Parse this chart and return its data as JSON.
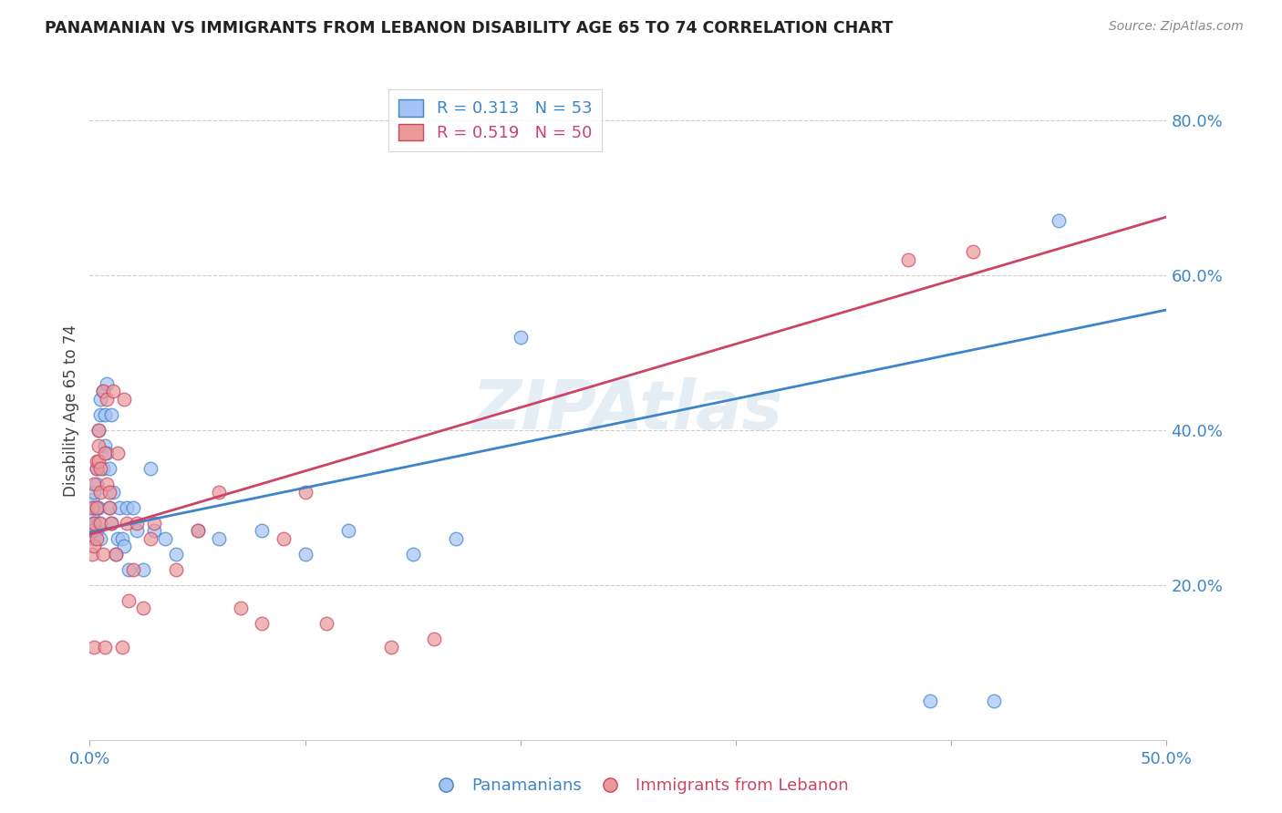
{
  "title": "PANAMANIAN VS IMMIGRANTS FROM LEBANON DISABILITY AGE 65 TO 74 CORRELATION CHART",
  "source": "Source: ZipAtlas.com",
  "ylabel": "Disability Age 65 to 74",
  "xlabel": "",
  "xlim": [
    0.0,
    0.5
  ],
  "ylim": [
    0.0,
    0.85
  ],
  "xticks": [
    0.0,
    0.1,
    0.2,
    0.3,
    0.4,
    0.5
  ],
  "xticklabels": [
    "0.0%",
    "",
    "",
    "",
    "",
    "50.0%"
  ],
  "yticks": [
    0.2,
    0.4,
    0.6,
    0.8
  ],
  "yticklabels": [
    "20.0%",
    "40.0%",
    "60.0%",
    "80.0%"
  ],
  "watermark": "ZIPAtlas",
  "blue_color": "#a4c2f4",
  "pink_color": "#ea9999",
  "blue_line_color": "#3d85c8",
  "pink_line_color": "#cc4466",
  "R_blue": 0.313,
  "N_blue": 53,
  "R_pink": 0.519,
  "N_pink": 50,
  "legend_label_blue": "Panamanians",
  "legend_label_pink": "Immigrants from Lebanon",
  "blue_x": [
    0.001,
    0.001,
    0.001,
    0.002,
    0.002,
    0.002,
    0.002,
    0.003,
    0.003,
    0.003,
    0.003,
    0.004,
    0.004,
    0.004,
    0.005,
    0.005,
    0.005,
    0.006,
    0.006,
    0.007,
    0.007,
    0.008,
    0.008,
    0.009,
    0.009,
    0.01,
    0.01,
    0.011,
    0.012,
    0.013,
    0.014,
    0.015,
    0.016,
    0.017,
    0.018,
    0.02,
    0.022,
    0.025,
    0.028,
    0.03,
    0.035,
    0.04,
    0.05,
    0.06,
    0.08,
    0.1,
    0.12,
    0.15,
    0.17,
    0.2,
    0.39,
    0.42,
    0.45
  ],
  "blue_y": [
    0.27,
    0.29,
    0.31,
    0.26,
    0.28,
    0.3,
    0.32,
    0.27,
    0.3,
    0.33,
    0.35,
    0.28,
    0.3,
    0.4,
    0.26,
    0.42,
    0.44,
    0.35,
    0.45,
    0.38,
    0.42,
    0.37,
    0.46,
    0.3,
    0.35,
    0.28,
    0.42,
    0.32,
    0.24,
    0.26,
    0.3,
    0.26,
    0.25,
    0.3,
    0.22,
    0.3,
    0.27,
    0.22,
    0.35,
    0.27,
    0.26,
    0.24,
    0.27,
    0.26,
    0.27,
    0.24,
    0.27,
    0.24,
    0.26,
    0.52,
    0.05,
    0.05,
    0.67
  ],
  "pink_x": [
    0.001,
    0.001,
    0.001,
    0.002,
    0.002,
    0.002,
    0.002,
    0.003,
    0.003,
    0.003,
    0.003,
    0.004,
    0.004,
    0.004,
    0.005,
    0.005,
    0.005,
    0.006,
    0.006,
    0.007,
    0.007,
    0.008,
    0.008,
    0.009,
    0.009,
    0.01,
    0.011,
    0.012,
    0.013,
    0.015,
    0.016,
    0.017,
    0.018,
    0.02,
    0.022,
    0.025,
    0.028,
    0.03,
    0.04,
    0.05,
    0.06,
    0.07,
    0.08,
    0.09,
    0.1,
    0.11,
    0.14,
    0.16,
    0.38,
    0.41
  ],
  "pink_y": [
    0.27,
    0.24,
    0.3,
    0.25,
    0.28,
    0.12,
    0.33,
    0.35,
    0.36,
    0.3,
    0.26,
    0.4,
    0.38,
    0.36,
    0.35,
    0.28,
    0.32,
    0.45,
    0.24,
    0.37,
    0.12,
    0.33,
    0.44,
    0.3,
    0.32,
    0.28,
    0.45,
    0.24,
    0.37,
    0.12,
    0.44,
    0.28,
    0.18,
    0.22,
    0.28,
    0.17,
    0.26,
    0.28,
    0.22,
    0.27,
    0.32,
    0.17,
    0.15,
    0.26,
    0.32,
    0.15,
    0.12,
    0.13,
    0.62,
    0.63
  ]
}
